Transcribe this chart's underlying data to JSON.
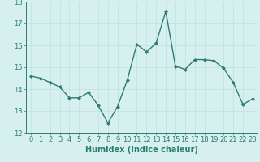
{
  "x": [
    0,
    1,
    2,
    3,
    4,
    5,
    6,
    7,
    8,
    9,
    10,
    11,
    12,
    13,
    14,
    15,
    16,
    17,
    18,
    19,
    20,
    21,
    22,
    23
  ],
  "y": [
    14.6,
    14.5,
    14.3,
    14.1,
    13.6,
    13.6,
    13.85,
    13.25,
    12.45,
    13.2,
    14.4,
    16.05,
    15.7,
    16.1,
    17.55,
    15.05,
    14.9,
    15.35,
    15.35,
    15.3,
    14.95,
    14.3,
    13.3,
    13.55
  ],
  "line_color": "#2d7d6e",
  "marker": "D",
  "marker_size": 2.0,
  "bg_color": "#d6f0f0",
  "grid_color": "#c0e0e0",
  "xlabel": "Humidex (Indice chaleur)",
  "ylim": [
    12,
    18
  ],
  "xlim": [
    -0.5,
    23.5
  ],
  "yticks": [
    12,
    13,
    14,
    15,
    16,
    17,
    18
  ],
  "xticks": [
    0,
    1,
    2,
    3,
    4,
    5,
    6,
    7,
    8,
    9,
    10,
    11,
    12,
    13,
    14,
    15,
    16,
    17,
    18,
    19,
    20,
    21,
    22,
    23
  ],
  "xlabel_fontsize": 7,
  "tick_fontsize": 6,
  "line_width": 1.0
}
